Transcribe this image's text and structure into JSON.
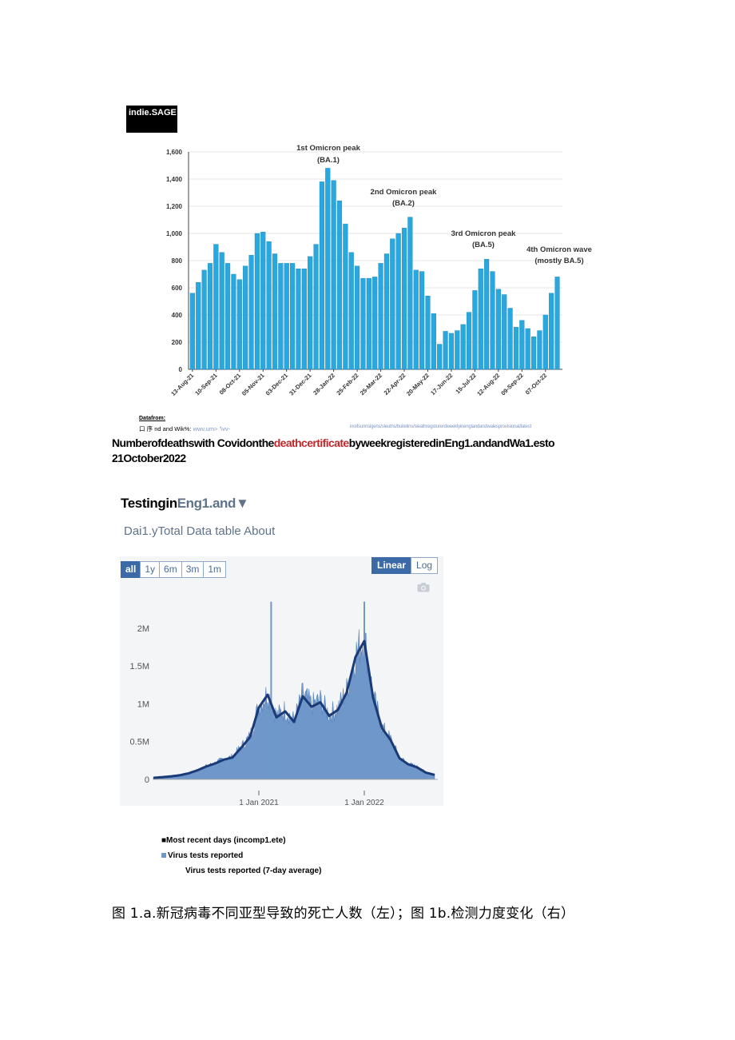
{
  "badge": "indie.SAGE",
  "deaths_chart": {
    "source_label": "Datafrom:",
    "source_text_prefix": "口 序",
    "source_text_main": "nd and Wik%:",
    "source_text_faint": "wwv.um> '\\vv-",
    "source_url": "inoifsunnsigens/sleuths/bulletins/sleathregsturerdweeklyinenglandandwalesprovisional/latest",
    "annotations": [
      "1st Omicron peak",
      "(BA.1)",
      "2nd Omicron peak",
      "(BA.2)",
      "3rd Omicron peak",
      "(BA.5)",
      "4th Omicron wave",
      "(mostly BA.5)"
    ]
  },
  "caption1": {
    "part1": "Numberofdeathswith Covidonthe",
    "part_red": "deathcertificate",
    "part2": "byweekregisteredinEng1.andandWa1.esto",
    "part3": "21October2022"
  },
  "testing": {
    "title_a": "Testingin",
    "title_b": "Eng1.and",
    "title_arrow": "▼",
    "tabs": "Dai1.yTotal Data table About",
    "range_buttons": [
      "all",
      "1y",
      "6m",
      "3m",
      "1m"
    ],
    "scale_buttons": [
      "Linear",
      "Log"
    ],
    "legend": [
      "■Most recent days (incomp1.ete)",
      "Virus tests reported",
      "Virus tests reported (7-day average)"
    ],
    "colors": {
      "bars": "#6f97c9",
      "line": "#1b3a78"
    }
  },
  "caption2": "图 1.a.新冠病毒不同亚型导致的死亡人数（左）；图 1b.检测力度变化（右）",
  "chart_data": [
    {
      "type": "bar",
      "title": "",
      "xlabel": "",
      "ylabel": "",
      "ylim": [
        0,
        1600
      ],
      "yticks": [
        0,
        200,
        400,
        600,
        800,
        1000,
        1200,
        1400,
        1600
      ],
      "ytick_labels": [
        "0",
        "200",
        "400",
        "600",
        "800",
        "1,000",
        "1,200",
        "1,400",
        "1,600"
      ],
      "xtick_labels": [
        "13-Aug-21",
        "10-Sep-21",
        "08-Oct-21",
        "05-Nov-21",
        "03-Dec-21",
        "31-Dec-21",
        "28-Jan-22",
        "25-Feb-22",
        "25-Mar-22",
        "22-Apr-22",
        "20-May-22",
        "17-Jun-22",
        "15-Jul-22",
        "12-Aug-22",
        "09-Sep-22",
        "07-Oct-22"
      ],
      "values": [
        560,
        640,
        730,
        780,
        920,
        860,
        780,
        700,
        660,
        760,
        840,
        1000,
        1010,
        940,
        850,
        780,
        780,
        780,
        740,
        740,
        830,
        920,
        1380,
        1480,
        1390,
        1240,
        1070,
        860,
        760,
        670,
        670,
        680,
        780,
        850,
        960,
        1000,
        1040,
        1120,
        730,
        720,
        540,
        410,
        185,
        280,
        265,
        285,
        330,
        420,
        580,
        740,
        810,
        720,
        590,
        550,
        450,
        310,
        360,
        300,
        240,
        285,
        400,
        560,
        680
      ]
    },
    {
      "type": "area",
      "title": "Testing in England",
      "ylim": [
        0,
        2400000
      ],
      "ytick_labels": [
        "0",
        "0.5M",
        "1M",
        "1.5M",
        "2M"
      ],
      "yticks": [
        0,
        500000,
        1000000,
        1500000,
        2000000
      ],
      "xtick_labels": [
        "1 Jan 2021",
        "1 Jan 2022"
      ],
      "series": [
        {
          "name": "Virus tests reported (7-day average)",
          "x_months": [
            0,
            1,
            2,
            3,
            4,
            5,
            6,
            7,
            8,
            9,
            10,
            11,
            12,
            13,
            14,
            15,
            16,
            17,
            18,
            19,
            20,
            21,
            22,
            23,
            24,
            25,
            26,
            27,
            28,
            29,
            30,
            31,
            32
          ],
          "values": [
            20000,
            30000,
            40000,
            55000,
            80000,
            120000,
            170000,
            210000,
            260000,
            290000,
            420000,
            560000,
            950000,
            1120000,
            820000,
            900000,
            760000,
            1100000,
            960000,
            1020000,
            840000,
            920000,
            1150000,
            1620000,
            1830000,
            1080000,
            680000,
            520000,
            280000,
            200000,
            160000,
            90000,
            60000
          ]
        }
      ]
    }
  ]
}
